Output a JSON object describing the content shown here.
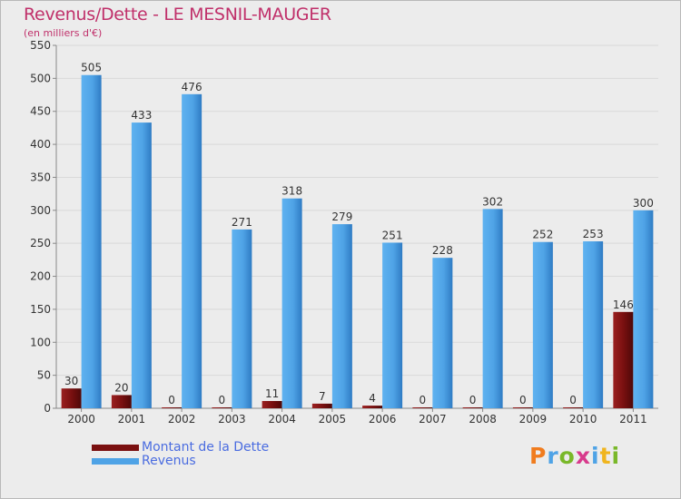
{
  "title": "Revenus/Dette - LE MESNIL-MAUGER",
  "subtitle": "(en milliers d'€)",
  "colors": {
    "debt": "#7a1010",
    "revenue": "#4fa3e6",
    "grid": "#d9d9d9",
    "axis_text": "#333333"
  },
  "legend": {
    "debt_label": "Montant de la Dette",
    "revenue_label": "Revenus"
  },
  "logo": {
    "letters": [
      "P",
      "r",
      "o",
      "x",
      "i",
      "t",
      "i"
    ],
    "colors": [
      "#f07c1e",
      "#4fa3e6",
      "#79b829",
      "#d83a8c",
      "#4fa3e6",
      "#f0b51e",
      "#79b829"
    ]
  },
  "chart_data": {
    "type": "bar",
    "title": "Revenus/Dette - LE MESNIL-MAUGER",
    "subtitle": "(en milliers d'€)",
    "categories": [
      "2000",
      "2001",
      "2002",
      "2003",
      "2004",
      "2005",
      "2006",
      "2007",
      "2008",
      "2009",
      "2010",
      "2011"
    ],
    "series": [
      {
        "name": "Montant de la Dette",
        "values": [
          30,
          20,
          0,
          0,
          11,
          7,
          4,
          0,
          0,
          0,
          0,
          146
        ]
      },
      {
        "name": "Revenus",
        "values": [
          505,
          433,
          476,
          271,
          318,
          279,
          251,
          228,
          302,
          252,
          253,
          300
        ]
      }
    ],
    "ylim": [
      0,
      550
    ],
    "yticks": [
      0,
      50,
      100,
      150,
      200,
      250,
      300,
      350,
      400,
      450,
      500,
      550
    ],
    "grid": true,
    "legend_position": "bottom-left"
  }
}
